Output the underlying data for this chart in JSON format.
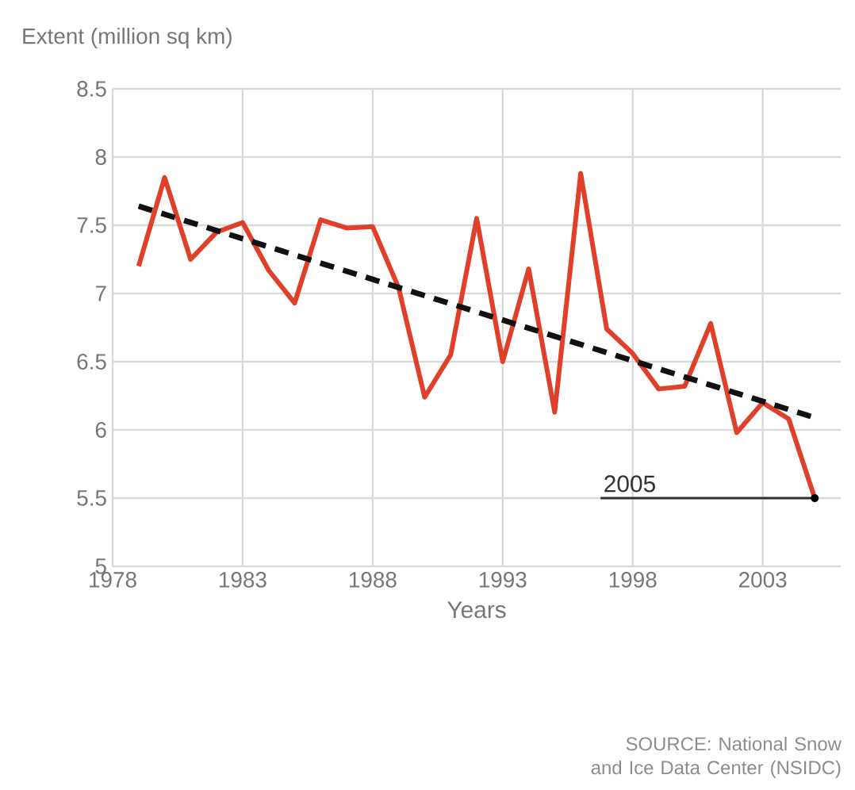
{
  "chart_data": {
    "type": "line",
    "ylabel": "Extent (million sq km)",
    "xlabel": "Years",
    "x": [
      1979,
      1980,
      1981,
      1982,
      1983,
      1984,
      1985,
      1986,
      1987,
      1988,
      1989,
      1990,
      1991,
      1992,
      1993,
      1994,
      1995,
      1996,
      1997,
      1998,
      1999,
      2000,
      2001,
      2002,
      2003,
      2004,
      2005
    ],
    "series": [
      {
        "color": "#e0402a",
        "values": [
          7.2,
          7.85,
          7.25,
          7.45,
          7.52,
          7.17,
          6.93,
          7.54,
          7.48,
          7.49,
          7.04,
          6.24,
          6.55,
          7.55,
          6.5,
          7.18,
          6.13,
          7.88,
          6.74,
          6.56,
          6.3,
          6.32,
          6.78,
          5.98,
          6.2,
          6.08,
          5.5
        ]
      },
      {
        "type": "line",
        "color": "#111111",
        "line_style": "dashed",
        "x": [
          1979,
          2005
        ],
        "values": [
          7.64,
          6.09
        ]
      }
    ],
    "xlim": [
      1978,
      2006
    ],
    "ylim": [
      5,
      8.5
    ],
    "xticks": [
      1978,
      1983,
      1988,
      1993,
      1998,
      2003
    ],
    "yticks": [
      5,
      5.5,
      6,
      6.5,
      7,
      7.5,
      8,
      8.5
    ],
    "grid": true,
    "marker": "none",
    "annotations": [
      {
        "text": "2005",
        "x": 2005,
        "y": 5.5
      },
      "SOURCE: National Snow and Ice Data Center (NSIDC)"
    ]
  }
}
